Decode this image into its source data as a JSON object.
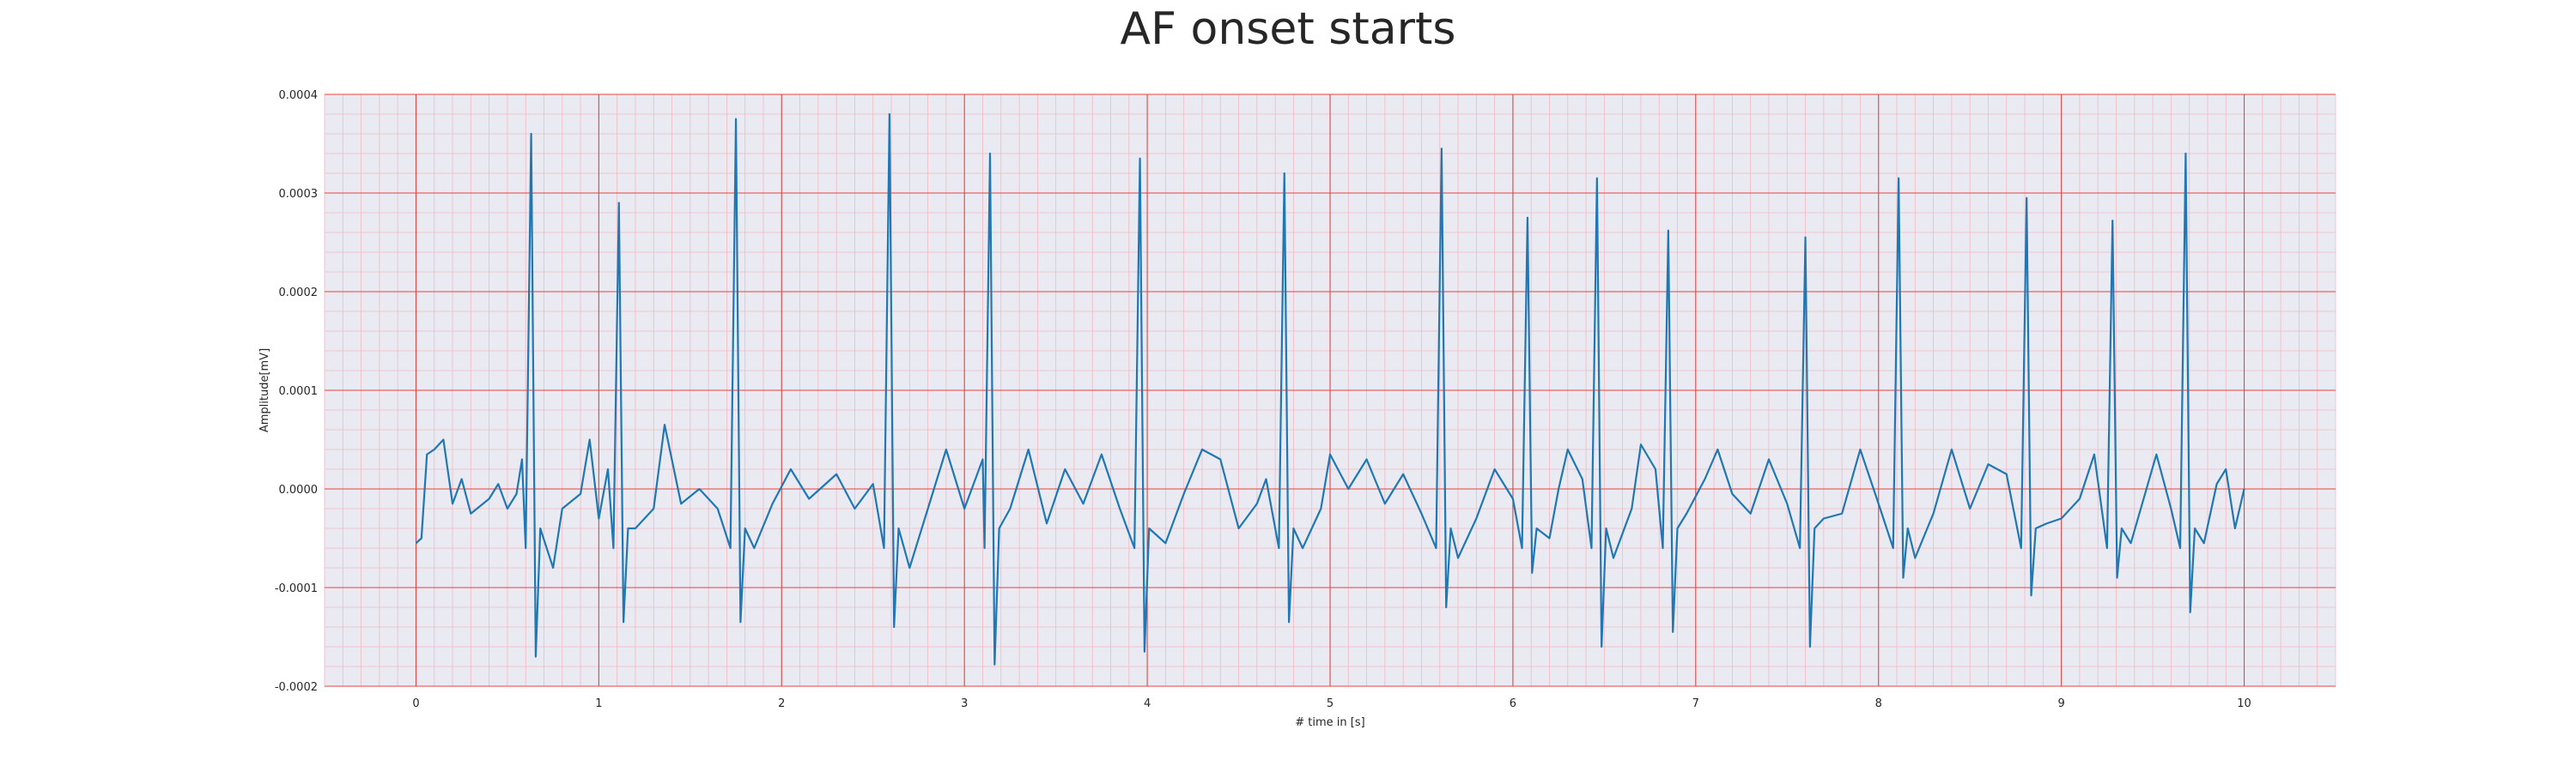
{
  "chart_data": {
    "type": "line",
    "title": "AF onset starts",
    "xlabel": "# time in [s]",
    "ylabel": "Amplitude[mV]",
    "xlim": [
      -0.5,
      10.5
    ],
    "ylim": [
      -0.0002,
      0.0004
    ],
    "x_ticks": [
      0,
      1,
      2,
      3,
      4,
      5,
      6,
      7,
      8,
      9,
      10
    ],
    "x_tick_labels": [
      "0",
      "1",
      "2",
      "3",
      "4",
      "5",
      "6",
      "7",
      "8",
      "9",
      "10"
    ],
    "y_ticks": [
      -0.0002,
      -0.0001,
      0.0,
      0.0001,
      0.0002,
      0.0003,
      0.0004
    ],
    "y_tick_labels": [
      "-0.0002",
      "-0.0001",
      "0.0000",
      "0.0001",
      "0.0002",
      "0.0003",
      "0.0004"
    ],
    "grid": "major and minor",
    "series": [
      {
        "name": "",
        "color": "#1f77b4",
        "r_peaks": [
          {
            "t": 0.63,
            "peak": 0.00036,
            "trough": -0.00017
          },
          {
            "t": 1.11,
            "peak": 0.00029,
            "trough": -0.000135
          },
          {
            "t": 1.75,
            "peak": 0.000375,
            "trough": -0.000135
          },
          {
            "t": 2.59,
            "peak": 0.00038,
            "trough": -0.00014
          },
          {
            "t": 3.14,
            "peak": 0.00034,
            "trough": -0.000178
          },
          {
            "t": 3.96,
            "peak": 0.000335,
            "trough": -0.000165
          },
          {
            "t": 4.75,
            "peak": 0.00032,
            "trough": -0.000135
          },
          {
            "t": 5.61,
            "peak": 0.000345,
            "trough": -0.00012
          },
          {
            "t": 6.08,
            "peak": 0.000275,
            "trough": -8.5e-05
          },
          {
            "t": 6.46,
            "peak": 0.000315,
            "trough": -0.00016
          },
          {
            "t": 6.85,
            "peak": 0.000262,
            "trough": -0.000145
          },
          {
            "t": 7.6,
            "peak": 0.000255,
            "trough": -0.00016
          },
          {
            "t": 8.11,
            "peak": 0.000315,
            "trough": -9e-05
          },
          {
            "t": 8.81,
            "peak": 0.000295,
            "trough": -0.000108
          },
          {
            "t": 9.28,
            "peak": 0.000272,
            "trough": -9e-05
          },
          {
            "t": 9.68,
            "peak": 0.00034,
            "trough": -0.000125
          }
        ],
        "baseline_points": [
          [
            0.0,
            -5.5e-05
          ],
          [
            0.03,
            -5e-05
          ],
          [
            0.06,
            3.5e-05
          ],
          [
            0.1,
            4e-05
          ],
          [
            0.15,
            5e-05
          ],
          [
            0.2,
            -1.5e-05
          ],
          [
            0.25,
            1e-05
          ],
          [
            0.3,
            -2.5e-05
          ],
          [
            0.4,
            -1e-05
          ],
          [
            0.45,
            5e-06
          ],
          [
            0.5,
            -2e-05
          ],
          [
            0.55,
            -5e-06
          ],
          [
            0.58,
            3e-05
          ],
          [
            0.75,
            -8e-05
          ],
          [
            0.8,
            -2e-05
          ],
          [
            0.9,
            -5e-06
          ],
          [
            0.95,
            5e-05
          ],
          [
            1.0,
            -3e-05
          ],
          [
            1.05,
            2e-05
          ],
          [
            1.2,
            -4e-05
          ],
          [
            1.3,
            -2e-05
          ],
          [
            1.36,
            6.5e-05
          ],
          [
            1.45,
            -1.5e-05
          ],
          [
            1.55,
            0.0
          ],
          [
            1.65,
            -2e-05
          ],
          [
            1.85,
            -6e-05
          ],
          [
            1.95,
            -1.5e-05
          ],
          [
            2.05,
            2e-05
          ],
          [
            2.15,
            -1e-05
          ],
          [
            2.3,
            1.5e-05
          ],
          [
            2.4,
            -2e-05
          ],
          [
            2.5,
            5e-06
          ],
          [
            2.7,
            -8e-05
          ],
          [
            2.8,
            -2e-05
          ],
          [
            2.9,
            4e-05
          ],
          [
            3.0,
            -2e-05
          ],
          [
            3.1,
            3e-05
          ],
          [
            3.25,
            -2e-05
          ],
          [
            3.35,
            4e-05
          ],
          [
            3.45,
            -3.5e-05
          ],
          [
            3.55,
            2e-05
          ],
          [
            3.65,
            -1.5e-05
          ],
          [
            3.75,
            3.5e-05
          ],
          [
            3.85,
            -2e-05
          ],
          [
            4.1,
            -5.5e-05
          ],
          [
            4.2,
            -5e-06
          ],
          [
            4.3,
            4e-05
          ],
          [
            4.4,
            3e-05
          ],
          [
            4.5,
            -4e-05
          ],
          [
            4.6,
            -1.5e-05
          ],
          [
            4.65,
            1e-05
          ],
          [
            4.85,
            -6e-05
          ],
          [
            4.95,
            -2e-05
          ],
          [
            5.0,
            3.5e-05
          ],
          [
            5.1,
            0.0
          ],
          [
            5.2,
            3e-05
          ],
          [
            5.3,
            -1.5e-05
          ],
          [
            5.4,
            1.5e-05
          ],
          [
            5.5,
            -2.5e-05
          ],
          [
            5.7,
            -7e-05
          ],
          [
            5.8,
            -3e-05
          ],
          [
            5.9,
            2e-05
          ],
          [
            6.0,
            -1e-05
          ],
          [
            6.2,
            -5e-05
          ],
          [
            6.25,
            0.0
          ],
          [
            6.3,
            4e-05
          ],
          [
            6.38,
            1e-05
          ],
          [
            6.55,
            -7e-05
          ],
          [
            6.65,
            -2e-05
          ],
          [
            6.7,
            4.5e-05
          ],
          [
            6.78,
            2e-05
          ],
          [
            6.95,
            -2.5e-05
          ],
          [
            7.05,
            1e-05
          ],
          [
            7.12,
            4e-05
          ],
          [
            7.2,
            -5e-06
          ],
          [
            7.3,
            -2.5e-05
          ],
          [
            7.4,
            3e-05
          ],
          [
            7.5,
            -1.5e-05
          ],
          [
            7.7,
            -3e-05
          ],
          [
            7.8,
            -2.5e-05
          ],
          [
            7.9,
            4e-05
          ],
          [
            8.0,
            -1.5e-05
          ],
          [
            8.2,
            -7e-05
          ],
          [
            8.3,
            -2.5e-05
          ],
          [
            8.4,
            4e-05
          ],
          [
            8.5,
            -2e-05
          ],
          [
            8.6,
            2.5e-05
          ],
          [
            8.7,
            1.5e-05
          ],
          [
            8.92,
            -3.5e-05
          ],
          [
            9.0,
            -3e-05
          ],
          [
            9.1,
            -1e-05
          ],
          [
            9.18,
            3.5e-05
          ],
          [
            9.38,
            -5.5e-05
          ],
          [
            9.45,
            -1e-05
          ],
          [
            9.52,
            3.5e-05
          ],
          [
            9.6,
            -2e-05
          ],
          [
            9.78,
            -5.5e-05
          ],
          [
            9.85,
            5e-06
          ],
          [
            9.9,
            2e-05
          ],
          [
            9.95,
            -4e-05
          ],
          [
            10.0,
            0.0
          ]
        ]
      }
    ]
  }
}
